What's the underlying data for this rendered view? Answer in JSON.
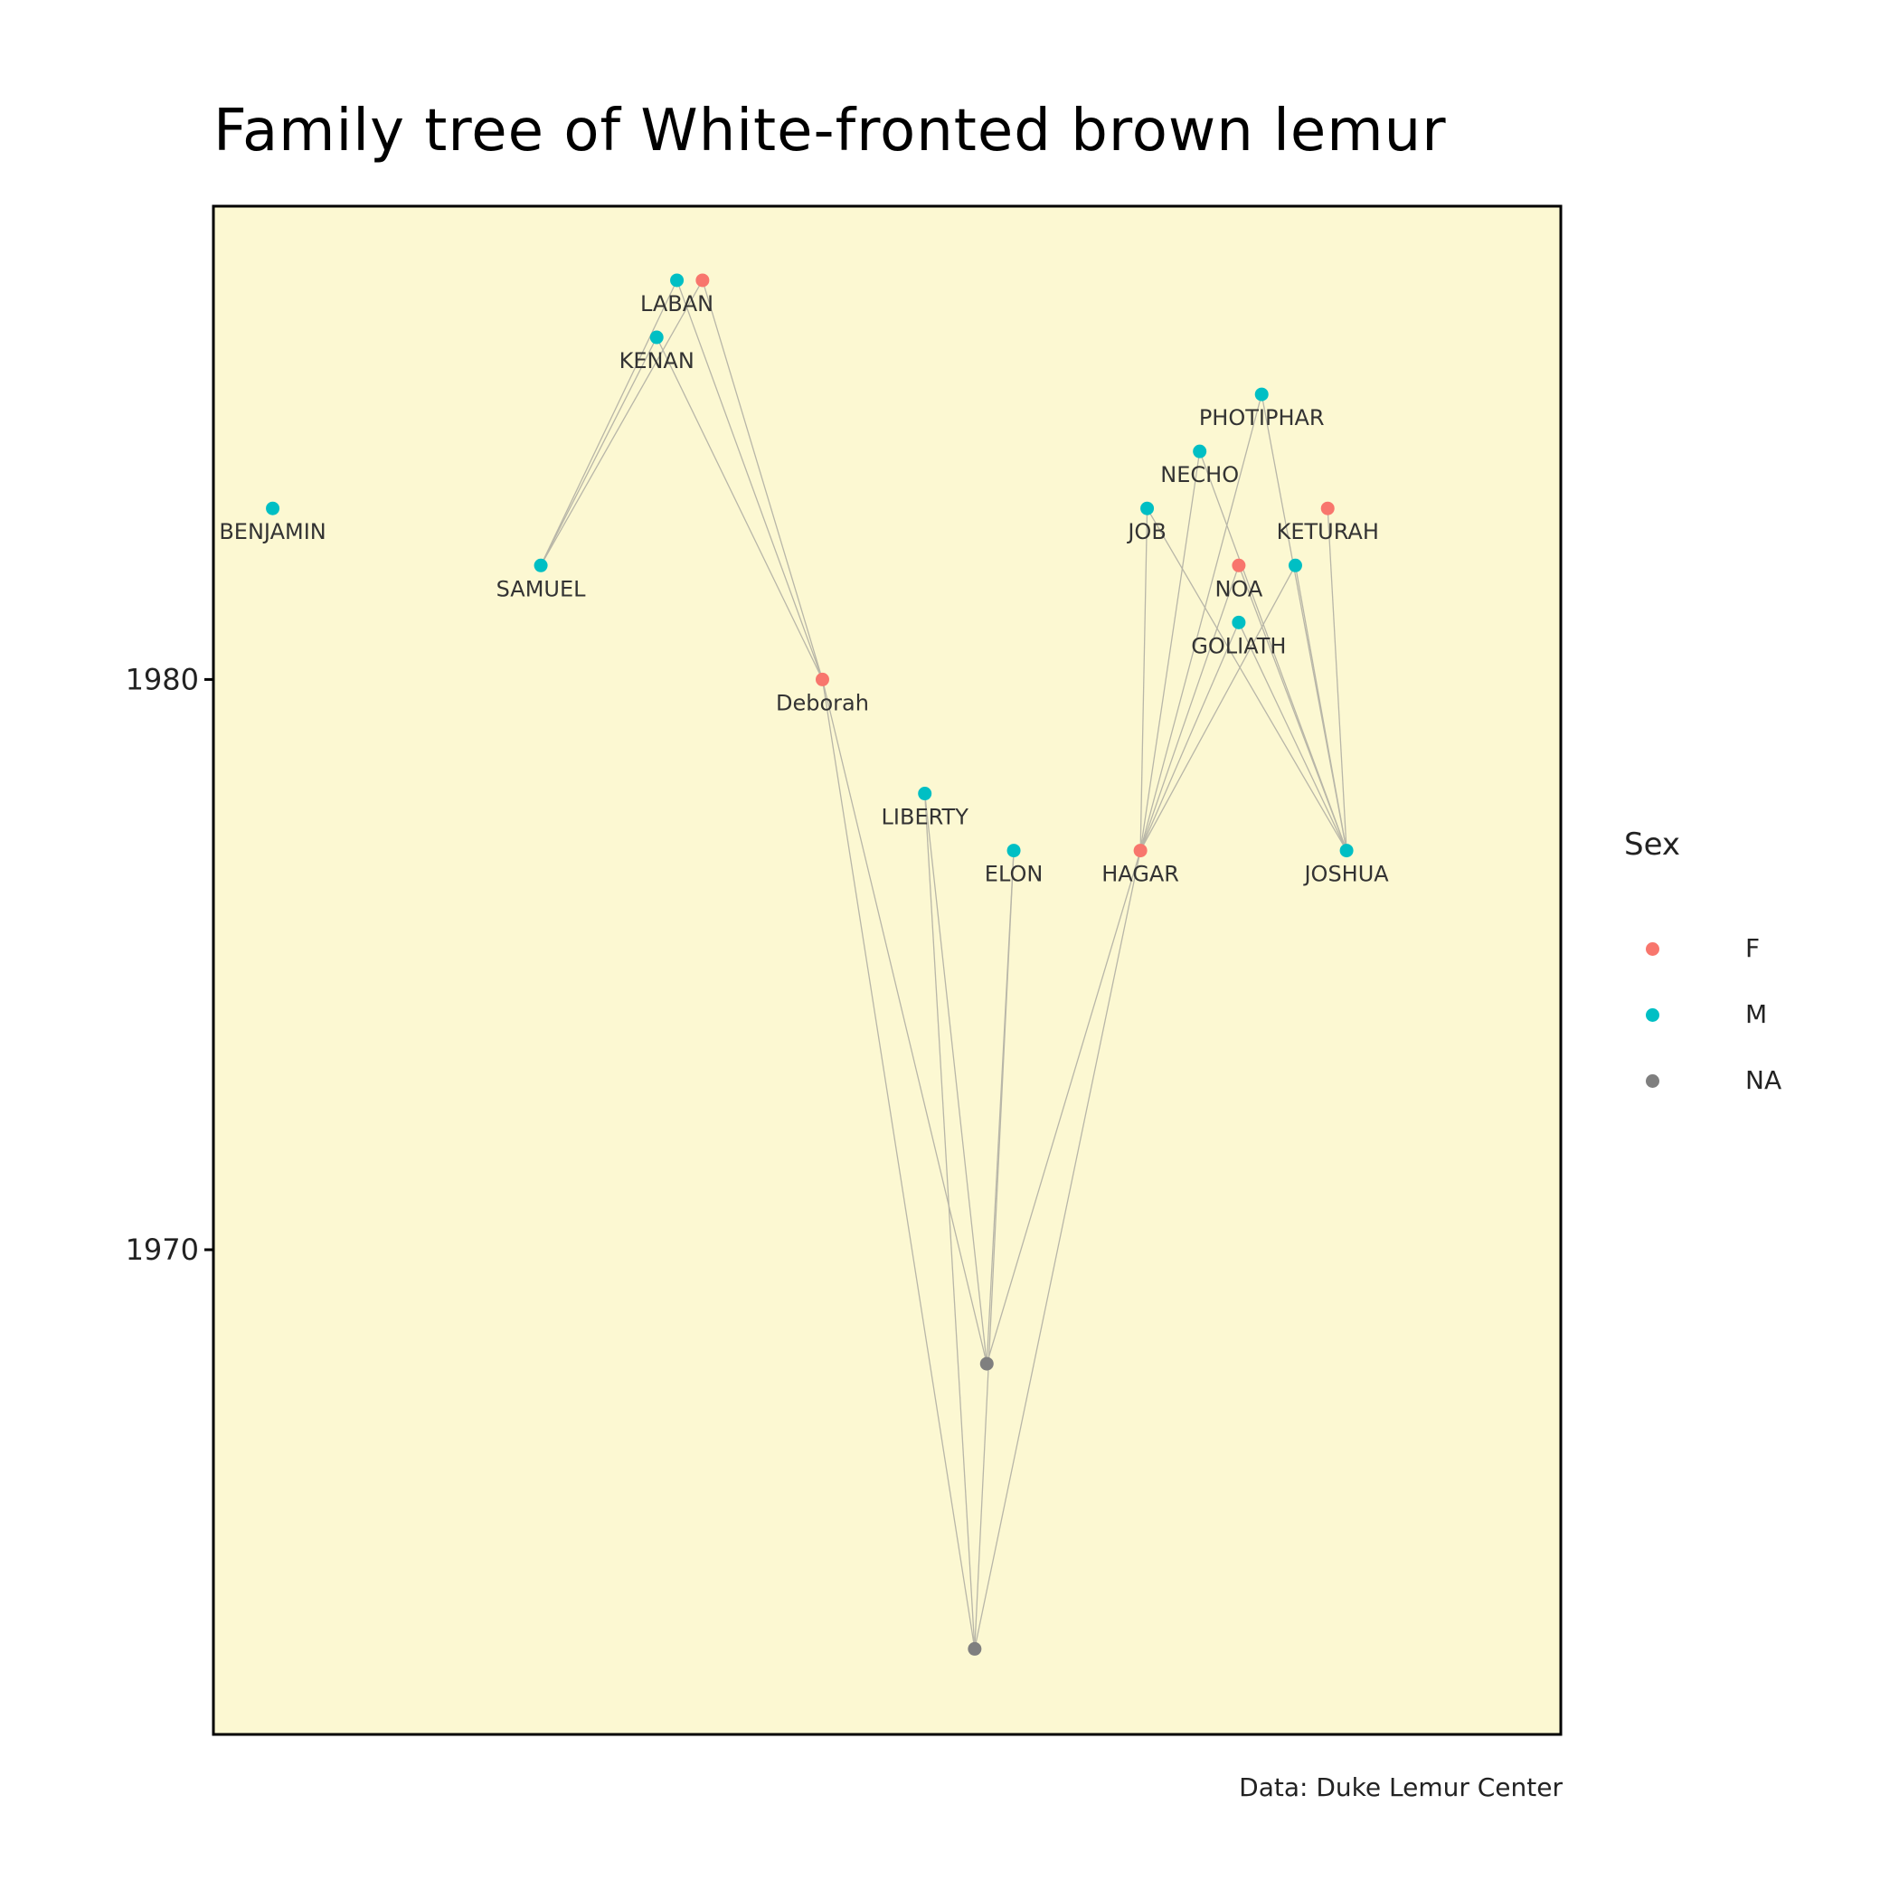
{
  "title": "Family tree of White-fronted brown lemur",
  "caption": "Data: Duke Lemur Center",
  "colors": {
    "panel_bg": "#fcf8d2",
    "F": "#f8766d",
    "M": "#00bfc4",
    "NA": "#7f7f7f",
    "edge": "#b8b6a8"
  },
  "legend": {
    "title": "Sex",
    "items": [
      {
        "key": "F",
        "label": "F"
      },
      {
        "key": "M",
        "label": "M"
      },
      {
        "key": "NA",
        "label": "NA"
      }
    ]
  },
  "chart_data": {
    "type": "scatter",
    "title": "Family tree of White-fronted brown lemur",
    "xlabel": "",
    "ylabel": "",
    "x_axis_visible": false,
    "ylim": [
      1961.5,
      1988.3
    ],
    "xlim": [
      0,
      100
    ],
    "yticks": [
      1970,
      1980
    ],
    "grid": false,
    "legend_position": "right",
    "nodes": [
      {
        "id": "LABAN",
        "label": "LABAN",
        "sex": "M",
        "x": 34.4,
        "y": 1987.0
      },
      {
        "id": "LABAN_F",
        "label": "",
        "sex": "F",
        "x": 36.3,
        "y": 1987.0
      },
      {
        "id": "KENAN",
        "label": "KENAN",
        "sex": "M",
        "x": 32.9,
        "y": 1986.0
      },
      {
        "id": "BENJAMIN",
        "label": "BENJAMIN",
        "sex": "M",
        "x": 4.4,
        "y": 1983.0
      },
      {
        "id": "SAMUEL",
        "label": "SAMUEL",
        "sex": "M",
        "x": 24.3,
        "y": 1982.0
      },
      {
        "id": "Deborah",
        "label": "Deborah",
        "sex": "F",
        "x": 45.2,
        "y": 1980.0
      },
      {
        "id": "LIBERTY",
        "label": "LIBERTY",
        "sex": "M",
        "x": 52.8,
        "y": 1978.0
      },
      {
        "id": "ELON",
        "label": "ELON",
        "sex": "M",
        "x": 59.4,
        "y": 1977.0
      },
      {
        "id": "HAGAR",
        "label": "HAGAR",
        "sex": "F",
        "x": 68.8,
        "y": 1977.0
      },
      {
        "id": "JOSHUA",
        "label": "JOSHUA",
        "sex": "M",
        "x": 84.1,
        "y": 1977.0
      },
      {
        "id": "PHOTIPHAR",
        "label": "PHOTIPHAR",
        "sex": "M",
        "x": 77.8,
        "y": 1985.0
      },
      {
        "id": "NECHO",
        "label": "NECHO",
        "sex": "M",
        "x": 73.2,
        "y": 1984.0
      },
      {
        "id": "JOB",
        "label": "JOB",
        "sex": "M",
        "x": 69.3,
        "y": 1983.0
      },
      {
        "id": "KETURAH",
        "label": "KETURAH",
        "sex": "F",
        "x": 82.7,
        "y": 1983.0
      },
      {
        "id": "NOA",
        "label": "NOA",
        "sex": "F",
        "x": 76.1,
        "y": 1982.0
      },
      {
        "id": "NOA_M",
        "label": "",
        "sex": "M",
        "x": 80.3,
        "y": 1982.0
      },
      {
        "id": "GOLIATH",
        "label": "GOLIATH",
        "sex": "M",
        "x": 76.1,
        "y": 1981.0
      },
      {
        "id": "NA1",
        "label": "",
        "sex": "NA",
        "x": 57.4,
        "y": 1968.0
      },
      {
        "id": "NA2",
        "label": "",
        "sex": "NA",
        "x": 56.5,
        "y": 1963.0
      }
    ],
    "edges": [
      [
        "LABAN",
        "SAMUEL"
      ],
      [
        "LABAN_F",
        "SAMUEL"
      ],
      [
        "KENAN",
        "SAMUEL"
      ],
      [
        "LABAN",
        "Deborah"
      ],
      [
        "LABAN_F",
        "Deborah"
      ],
      [
        "KENAN",
        "Deborah"
      ],
      [
        "Deborah",
        "NA1"
      ],
      [
        "Deborah",
        "NA2"
      ],
      [
        "LIBERTY",
        "NA1"
      ],
      [
        "LIBERTY",
        "NA2"
      ],
      [
        "ELON",
        "NA1"
      ],
      [
        "ELON",
        "NA2"
      ],
      [
        "HAGAR",
        "NA1"
      ],
      [
        "HAGAR",
        "NA2"
      ],
      [
        "JOB",
        "HAGAR"
      ],
      [
        "NECHO",
        "HAGAR"
      ],
      [
        "PHOTIPHAR",
        "HAGAR"
      ],
      [
        "NOA",
        "HAGAR"
      ],
      [
        "NOA_M",
        "HAGAR"
      ],
      [
        "GOLIATH",
        "HAGAR"
      ],
      [
        "JOB",
        "JOSHUA"
      ],
      [
        "NECHO",
        "JOSHUA"
      ],
      [
        "PHOTIPHAR",
        "JOSHUA"
      ],
      [
        "KETURAH",
        "JOSHUA"
      ],
      [
        "NOA",
        "JOSHUA"
      ],
      [
        "NOA_M",
        "JOSHUA"
      ],
      [
        "GOLIATH",
        "JOSHUA"
      ]
    ]
  }
}
